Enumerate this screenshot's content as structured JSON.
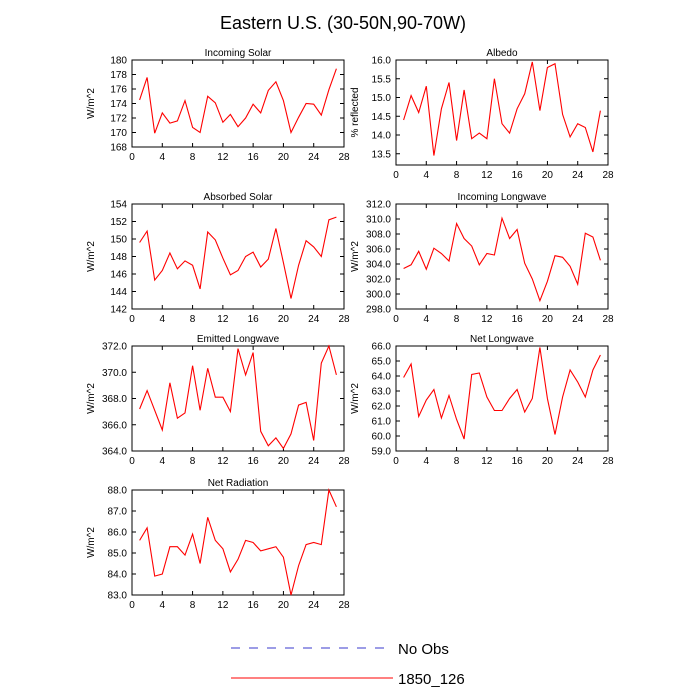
{
  "title": "Eastern U.S. (30-50N,90-70W)",
  "legend": {
    "items": [
      {
        "label": "No Obs",
        "color": "#3a3acc",
        "dash": true
      },
      {
        "label": "1850_126",
        "color": "#ff0000",
        "dash": false
      }
    ]
  },
  "chart_data": [
    {
      "type": "line",
      "title": "Incoming Solar",
      "ylabel": "W/m^2",
      "xlim": [
        0,
        28
      ],
      "xticks": [
        0,
        4,
        8,
        12,
        16,
        20,
        24,
        28
      ],
      "ylim": [
        168,
        180
      ],
      "yticks": [
        "168",
        "170",
        "172",
        "174",
        "176",
        "178",
        "180"
      ],
      "series": [
        {
          "color": "#ff0000",
          "x": [
            1,
            2,
            3,
            4,
            5,
            6,
            7,
            8,
            9,
            10,
            11,
            12,
            13,
            14,
            15,
            16,
            17,
            18,
            19,
            20,
            21,
            22,
            23,
            24,
            25,
            26,
            27
          ],
          "y": [
            174.5,
            177.6,
            169.9,
            172.7,
            171.3,
            171.6,
            174.4,
            170.7,
            170.0,
            175.0,
            174.1,
            171.4,
            172.5,
            170.8,
            172.0,
            173.9,
            172.7,
            175.8,
            177.0,
            174.4,
            170.0,
            172.1,
            174.0,
            173.9,
            172.4,
            175.9,
            178.8
          ]
        }
      ]
    },
    {
      "type": "line",
      "title": "Albedo",
      "ylabel": "% reflected",
      "xlim": [
        0,
        28
      ],
      "xticks": [
        0,
        4,
        8,
        12,
        16,
        20,
        24,
        28
      ],
      "ylim": [
        13.2,
        16.0
      ],
      "yticks": [
        "13.5",
        "14.0",
        "14.5",
        "15.0",
        "15.5",
        "16.0"
      ],
      "series": [
        {
          "color": "#ff0000",
          "x": [
            1,
            2,
            3,
            4,
            5,
            6,
            7,
            8,
            9,
            10,
            11,
            12,
            13,
            14,
            15,
            16,
            17,
            18,
            19,
            20,
            21,
            22,
            23,
            24,
            25,
            26,
            27
          ],
          "y": [
            14.4,
            15.05,
            14.6,
            15.3,
            13.45,
            14.7,
            15.4,
            13.85,
            15.2,
            13.9,
            14.05,
            13.9,
            15.5,
            14.3,
            14.05,
            14.7,
            15.1,
            15.95,
            14.65,
            15.8,
            15.9,
            14.55,
            13.95,
            14.3,
            14.2,
            13.55,
            14.65
          ]
        }
      ]
    },
    {
      "type": "line",
      "title": "Absorbed Solar",
      "ylabel": "W/m^2",
      "xlim": [
        0,
        28
      ],
      "xticks": [
        0,
        4,
        8,
        12,
        16,
        20,
        24,
        28
      ],
      "ylim": [
        142,
        154
      ],
      "yticks": [
        "142",
        "144",
        "146",
        "148",
        "150",
        "152",
        "154"
      ],
      "series": [
        {
          "color": "#ff0000",
          "x": [
            1,
            2,
            3,
            4,
            5,
            6,
            7,
            8,
            9,
            10,
            11,
            12,
            13,
            14,
            15,
            16,
            17,
            18,
            19,
            20,
            21,
            22,
            23,
            24,
            25,
            26,
            27
          ],
          "y": [
            149.6,
            150.9,
            145.3,
            146.4,
            148.4,
            146.6,
            147.5,
            147.0,
            144.3,
            150.8,
            149.9,
            147.8,
            145.9,
            146.4,
            148.0,
            148.5,
            146.8,
            147.7,
            151.2,
            147.3,
            143.2,
            147.0,
            149.8,
            149.1,
            148.0,
            152.2,
            152.5
          ]
        }
      ]
    },
    {
      "type": "line",
      "title": "Incoming Longwave",
      "ylabel": "W/m^2",
      "xlim": [
        0,
        28
      ],
      "xticks": [
        0,
        4,
        8,
        12,
        16,
        20,
        24,
        28
      ],
      "ylim": [
        298,
        312
      ],
      "yticks": [
        "298.0",
        "300.0",
        "302.0",
        "304.0",
        "306.0",
        "308.0",
        "310.0",
        "312.0"
      ],
      "series": [
        {
          "color": "#ff0000",
          "x": [
            1,
            2,
            3,
            4,
            5,
            6,
            7,
            8,
            9,
            10,
            11,
            12,
            13,
            14,
            15,
            16,
            17,
            18,
            19,
            20,
            21,
            22,
            23,
            24,
            25,
            26,
            27
          ],
          "y": [
            303.4,
            303.9,
            305.7,
            303.3,
            306.1,
            305.4,
            304.4,
            309.4,
            307.4,
            306.4,
            303.9,
            305.4,
            305.2,
            310.1,
            307.4,
            308.6,
            304.1,
            302.0,
            299.1,
            301.7,
            305.1,
            304.9,
            303.7,
            301.3,
            308.1,
            307.6,
            304.5
          ]
        }
      ]
    },
    {
      "type": "line",
      "title": "Emitted Longwave",
      "ylabel": "W/m^2",
      "xlim": [
        0,
        28
      ],
      "xticks": [
        0,
        4,
        8,
        12,
        16,
        20,
        24,
        28
      ],
      "ylim": [
        364,
        372
      ],
      "yticks": [
        "364.0",
        "366.0",
        "368.0",
        "370.0",
        "372.0"
      ],
      "series": [
        {
          "color": "#ff0000",
          "x": [
            1,
            2,
            3,
            4,
            5,
            6,
            7,
            8,
            9,
            10,
            11,
            12,
            13,
            14,
            15,
            16,
            17,
            18,
            19,
            20,
            21,
            22,
            23,
            24,
            25,
            26,
            27
          ],
          "y": [
            367.2,
            368.6,
            367.1,
            365.6,
            369.2,
            366.5,
            366.9,
            370.5,
            367.1,
            370.3,
            368.1,
            368.1,
            367.0,
            371.8,
            369.8,
            371.5,
            365.5,
            364.4,
            365.0,
            364.2,
            365.3,
            367.5,
            367.7,
            364.8,
            370.7,
            372.0,
            369.8
          ]
        }
      ]
    },
    {
      "type": "line",
      "title": "Net Longwave",
      "ylabel": "W/m^2",
      "xlim": [
        0,
        28
      ],
      "xticks": [
        0,
        4,
        8,
        12,
        16,
        20,
        24,
        28
      ],
      "ylim": [
        59,
        66
      ],
      "yticks": [
        "59.0",
        "60.0",
        "61.0",
        "62.0",
        "63.0",
        "64.0",
        "65.0",
        "66.0"
      ],
      "series": [
        {
          "color": "#ff0000",
          "x": [
            1,
            2,
            3,
            4,
            5,
            6,
            7,
            8,
            9,
            10,
            11,
            12,
            13,
            14,
            15,
            16,
            17,
            18,
            19,
            20,
            21,
            22,
            23,
            24,
            25,
            26,
            27
          ],
          "y": [
            63.9,
            64.8,
            61.3,
            62.4,
            63.1,
            61.2,
            62.7,
            61.1,
            59.8,
            64.1,
            64.2,
            62.6,
            61.7,
            61.7,
            62.5,
            63.1,
            61.6,
            62.5,
            65.9,
            62.5,
            60.1,
            62.6,
            64.4,
            63.6,
            62.6,
            64.4,
            65.4
          ]
        }
      ]
    },
    {
      "type": "line",
      "title": "Net Radiation",
      "ylabel": "W/m^2",
      "xlim": [
        0,
        28
      ],
      "xticks": [
        0,
        4,
        8,
        12,
        16,
        20,
        24,
        28
      ],
      "ylim": [
        83,
        88
      ],
      "yticks": [
        "83.0",
        "84.0",
        "85.0",
        "86.0",
        "87.0",
        "88.0"
      ],
      "series": [
        {
          "color": "#ff0000",
          "x": [
            1,
            2,
            3,
            4,
            5,
            6,
            7,
            8,
            9,
            10,
            11,
            12,
            13,
            14,
            15,
            16,
            17,
            18,
            19,
            20,
            21,
            22,
            23,
            24,
            25,
            26,
            27
          ],
          "y": [
            85.6,
            86.2,
            83.9,
            84.0,
            85.3,
            85.3,
            84.9,
            85.9,
            84.5,
            86.7,
            85.6,
            85.2,
            84.1,
            84.7,
            85.6,
            85.5,
            85.1,
            85.2,
            85.3,
            84.8,
            83.0,
            84.4,
            85.4,
            85.5,
            85.4,
            88.0,
            87.2
          ]
        }
      ]
    }
  ]
}
